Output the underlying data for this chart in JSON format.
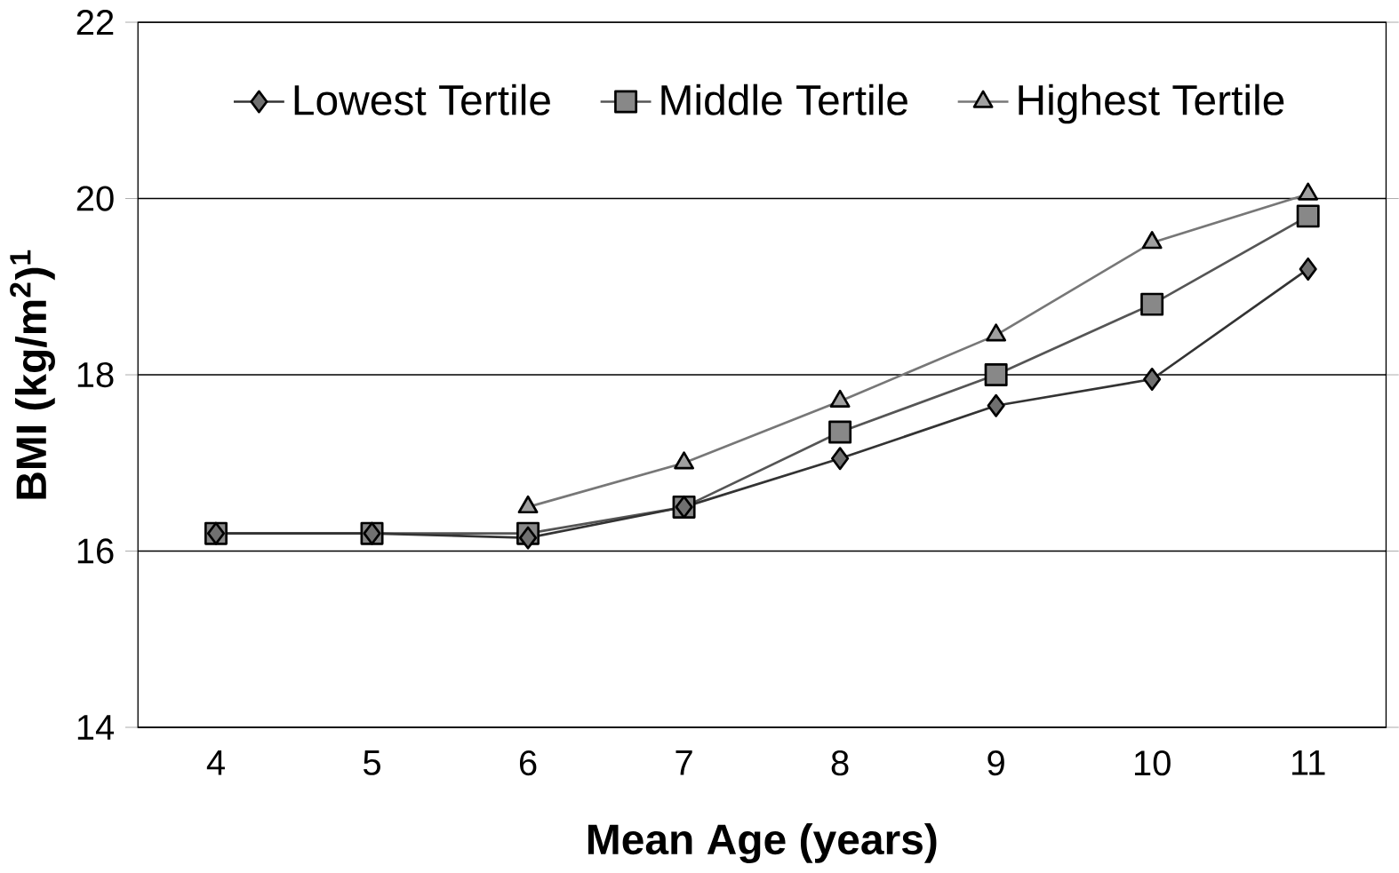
{
  "chart_data": {
    "type": "line",
    "xlabel": "Mean Age (years)",
    "ylabel": "BMI (kg/m$^{2}$)$^{1}$",
    "categories": [
      "4",
      "5",
      "6",
      "7",
      "8",
      "9",
      "10",
      "11"
    ],
    "series": [
      {
        "name": "Lowest Tertile",
        "color": "#333333",
        "marker": "diamond",
        "values": [
          16.2,
          16.2,
          16.15,
          16.5,
          17.05,
          17.65,
          17.95,
          19.2
        ]
      },
      {
        "name": "Middle Tertile",
        "color": "#555555",
        "marker": "square",
        "values": [
          16.2,
          16.2,
          16.2,
          16.5,
          17.35,
          18.0,
          18.8,
          19.8
        ]
      },
      {
        "name": "Highest Tertile",
        "color": "#777777",
        "marker": "triangle",
        "values": [
          null,
          null,
          16.5,
          17.0,
          17.7,
          18.45,
          19.5,
          20.05
        ]
      }
    ],
    "ylim": [
      14,
      22
    ],
    "yticks": [
      14,
      16,
      18,
      20,
      22
    ],
    "grid": "y",
    "legend": "top",
    "line_style": "solid"
  }
}
